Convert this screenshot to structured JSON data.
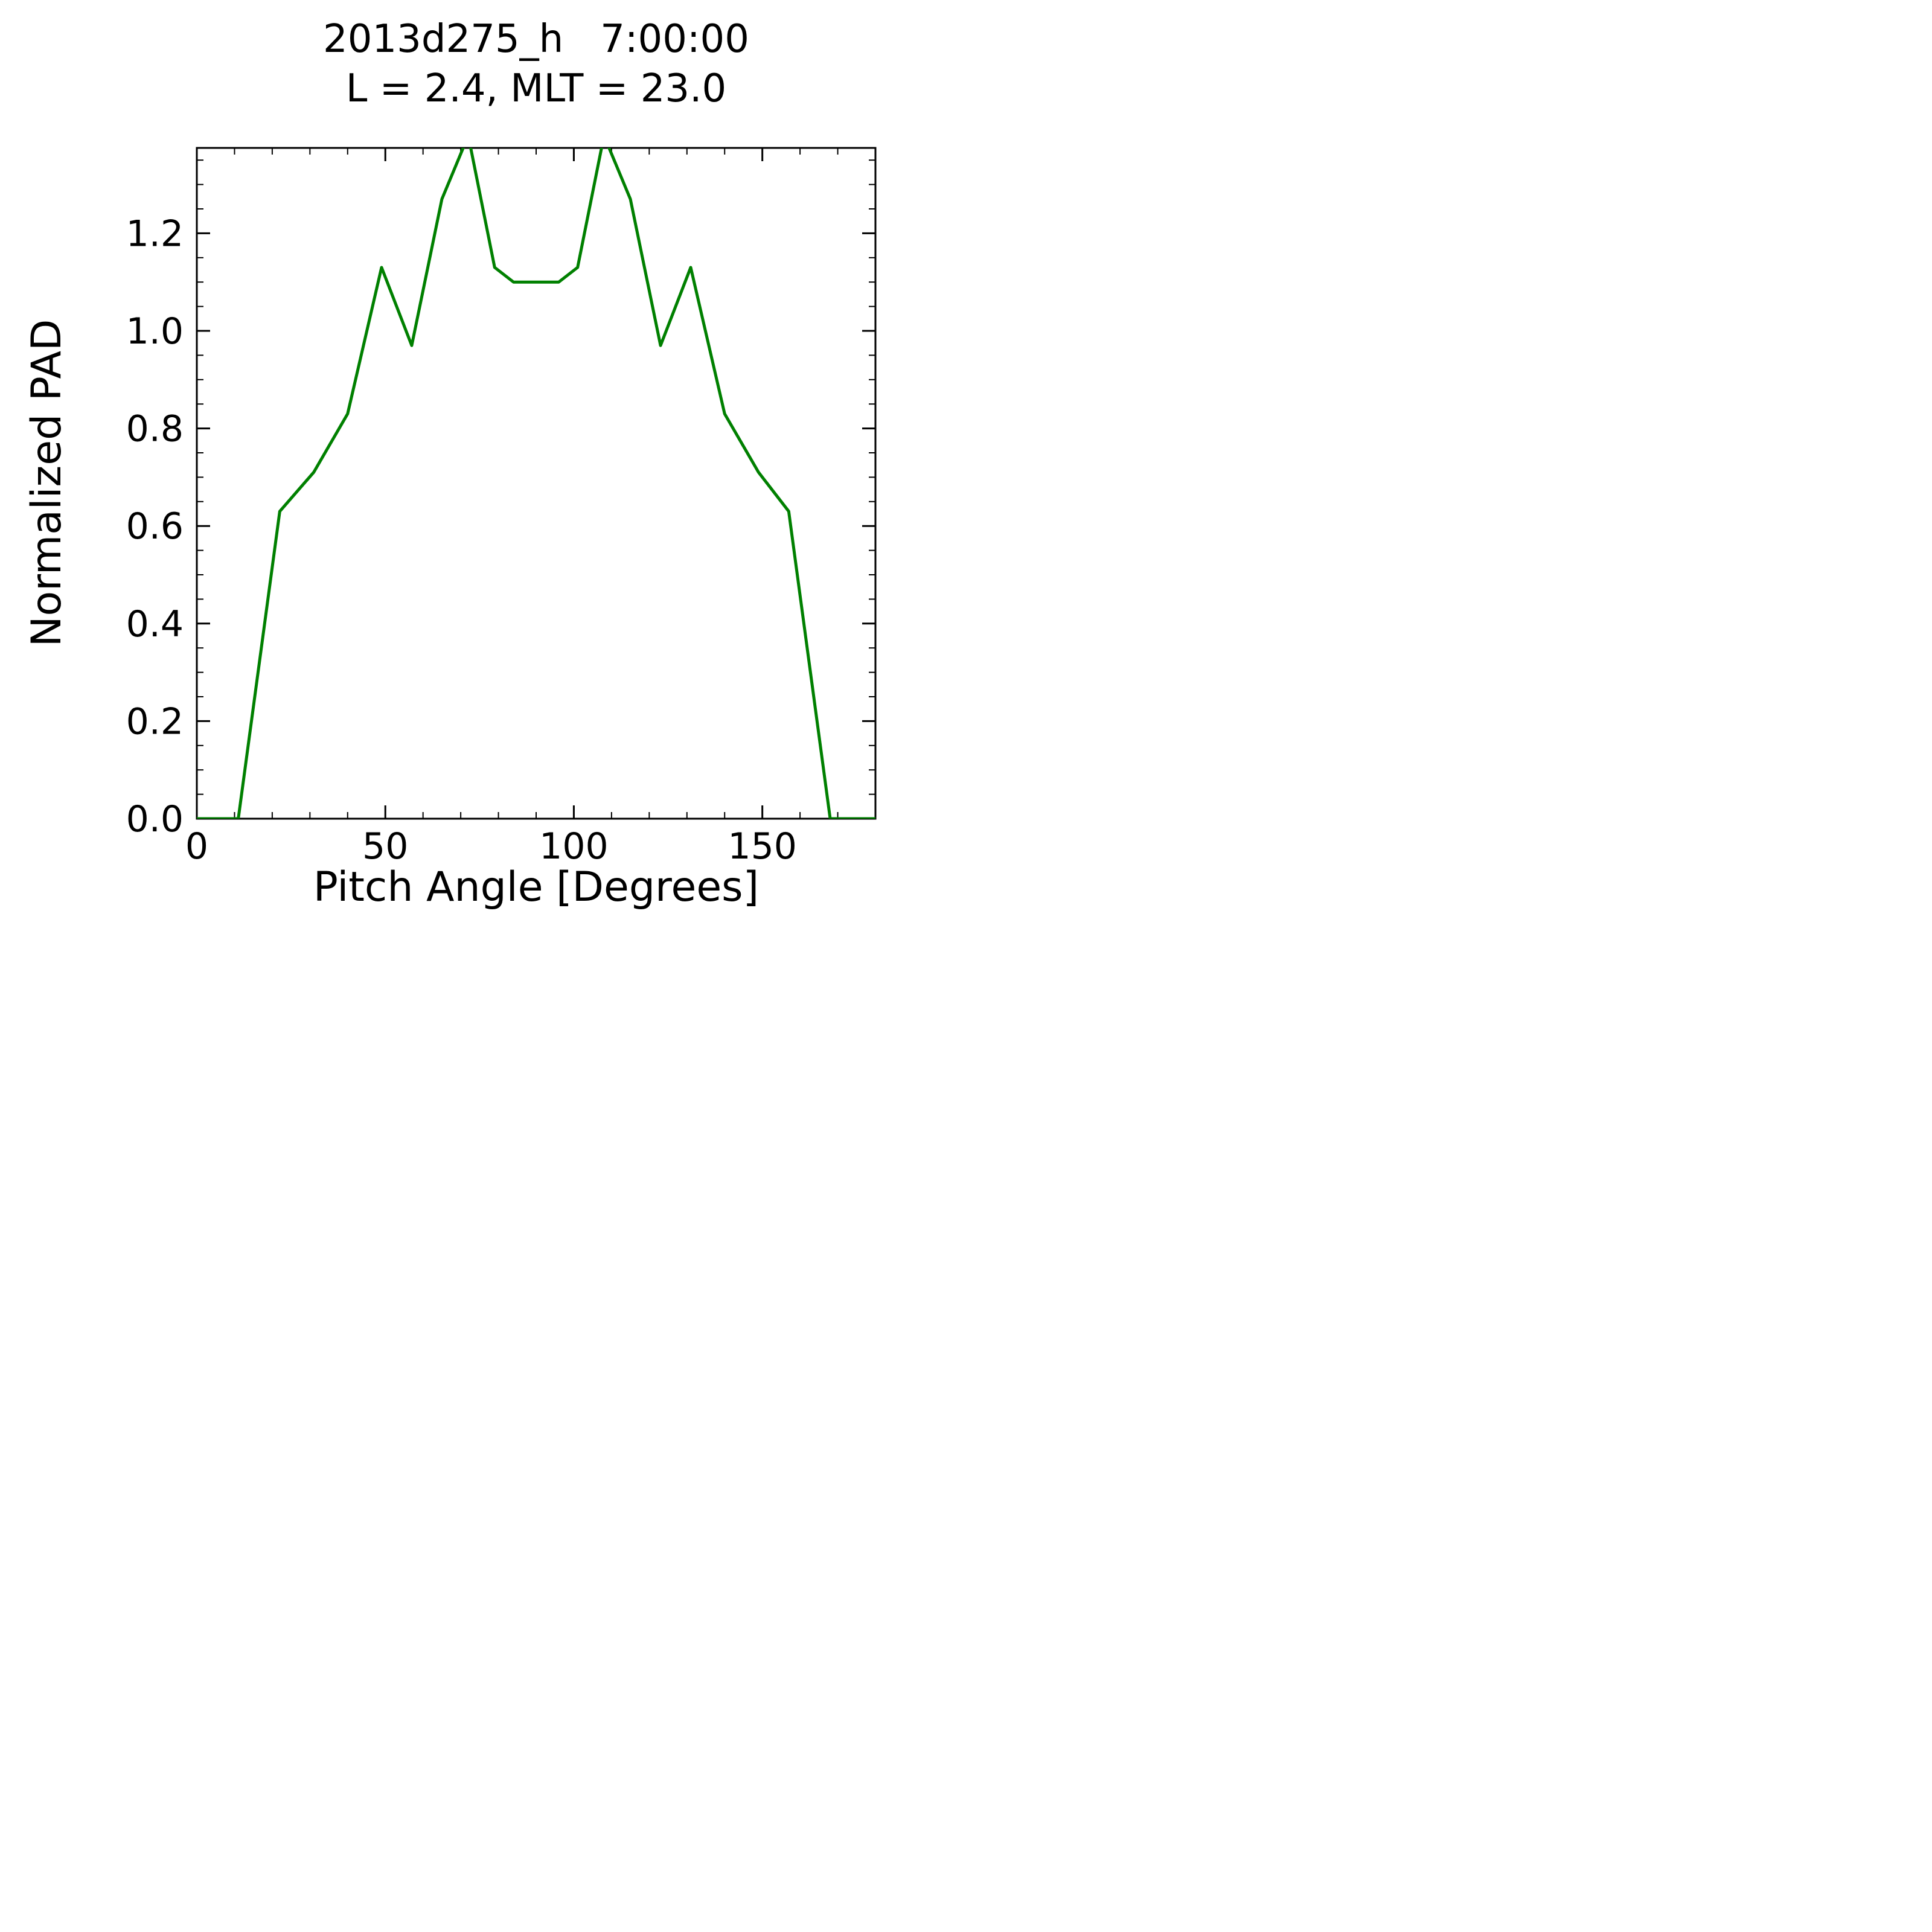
{
  "page": {
    "background": "#ffffff"
  },
  "chart_data": {
    "type": "line",
    "title": "2013d275_h   7:00:00",
    "subtitle": "L = 2.4, MLT = 23.0",
    "xlabel": "Pitch Angle [Degrees]",
    "ylabel": "Normalized PAD",
    "xlim": [
      0,
      180
    ],
    "ylim": [
      0,
      1.375
    ],
    "x_major_ticks": [
      0,
      50,
      100,
      150
    ],
    "x_minor_step": 10,
    "y_major_ticks": [
      0,
      0.2,
      0.4,
      0.6,
      0.8,
      1.0,
      1.2
    ],
    "y_minor_step": 0.05,
    "y_tick_decimals": 1,
    "grid": false,
    "legend": null,
    "line_color": "#008000",
    "axis_color": "#000000",
    "series": [
      {
        "name": "normalized-pad",
        "x": [
          0,
          11,
          22,
          31,
          40,
          49,
          57,
          65,
          72,
          79,
          84,
          90,
          96,
          101,
          108,
          115,
          123,
          131,
          140,
          149,
          157,
          168,
          180
        ],
        "y": [
          0,
          0,
          0.63,
          0.71,
          0.83,
          1.13,
          0.97,
          1.27,
          1.4,
          1.13,
          1.1,
          1.1,
          1.1,
          1.13,
          1.4,
          1.27,
          0.97,
          1.13,
          0.83,
          0.71,
          0.63,
          0,
          0
        ]
      }
    ]
  }
}
